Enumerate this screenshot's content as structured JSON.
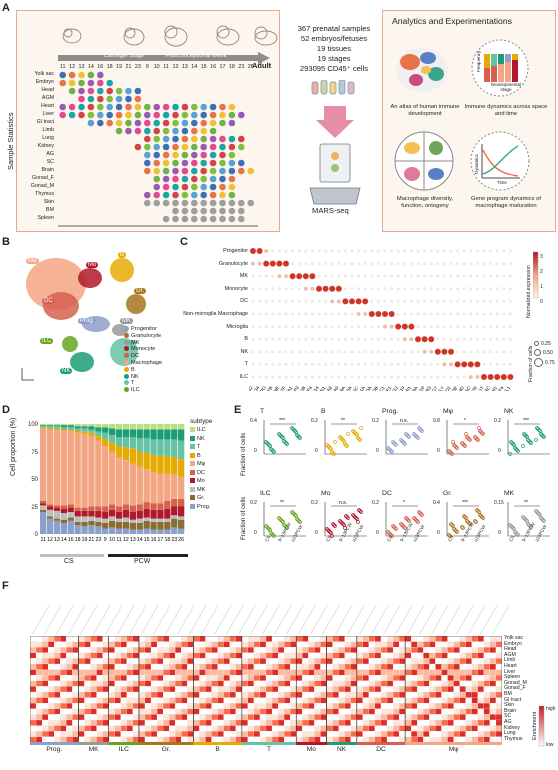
{
  "panelA": {
    "letter": "A",
    "y_title": "Sample Statistics",
    "stage_carnegie": "Carnegie Stage",
    "stage_post": "Postconceptional Week",
    "adult": "Adult",
    "stages": [
      "11",
      "12",
      "13",
      "14",
      "16",
      "18",
      "19",
      "21",
      "23",
      "9",
      "10",
      "11",
      "12",
      "13",
      "14",
      "15",
      "16",
      "17",
      "18",
      "23",
      "26"
    ],
    "tissues": [
      "Yolk sac",
      "Embryo",
      "Head",
      "AGM",
      "Heart",
      "Liver",
      "GI tract",
      "Limb",
      "Lung",
      "Kidney",
      "AG",
      "SC",
      "Brain",
      "Gonad_F",
      "Gonad_M",
      "Thymus",
      "Skin",
      "BM",
      "Spleen"
    ],
    "stats": [
      "367 prenatal samples",
      "52 embryos/fetuses",
      "19 tissues",
      "19 stages",
      "293095 CD45⁺ cells"
    ],
    "method": "MARS-seq",
    "analytics_title": "Analytics and Experimentations",
    "analytics": [
      {
        "caption": "An atlas of human immune development"
      },
      {
        "caption": "Immune dynamics across space and time",
        "ylab": "Frequency",
        "xlab": "Developmental stage"
      },
      {
        "caption": "Macrophage diversity, function, ontogeny"
      },
      {
        "caption": "Gene program dynamics of macrophage maturation",
        "ylab": "Dynamics",
        "xlab": "Time"
      }
    ]
  },
  "panelB": {
    "letter": "B",
    "cluster_labels": [
      "Mφ",
      "Mo",
      "B",
      "Gr.",
      "DC",
      "MK",
      "Prog.",
      "ILC",
      "NK",
      "T"
    ],
    "legend": [
      {
        "name": "Progenitor",
        "color": "#8da0cb"
      },
      {
        "name": "Granulocyte",
        "color": "#a6761d"
      },
      {
        "name": "MK",
        "color": "#999999"
      },
      {
        "name": "Monocyte",
        "color": "#b2182b"
      },
      {
        "name": "DC",
        "color": "#d6604d"
      },
      {
        "name": "Macrophage",
        "color": "#f4a582"
      },
      {
        "name": "B",
        "color": "#e6ab02"
      },
      {
        "name": "NK",
        "color": "#1b9e77"
      },
      {
        "name": "T",
        "color": "#66c2a5"
      },
      {
        "name": "ILC",
        "color": "#66a61e"
      }
    ]
  },
  "panelC": {
    "letter": "C",
    "rows": [
      "Progenitor",
      "Granulocyte",
      "MK",
      "Monocyte",
      "DC",
      "Non-microglia Macrophage",
      "Microglia",
      "B",
      "NK",
      "T",
      "ILC"
    ],
    "colorbar_title": "Normalized expression",
    "colorbar_ticks": [
      "3",
      "2",
      "1",
      "0"
    ],
    "size_title": "Fraction of cells",
    "size_ticks": [
      "0.25",
      "0.50",
      "0.75"
    ],
    "genes": [
      "HMGB2",
      "CD34",
      "MPO",
      "MYB",
      "ELANE",
      "LTF",
      "GATA1",
      "GP9",
      "ITGA2B",
      "PF4",
      "CD14",
      "FCN1",
      "S100A8",
      "S100A9",
      "CLEC9A",
      "CLEC10A",
      "CD1C",
      "FCER1A",
      "C1QA",
      "C1QB",
      "MRC1",
      "LYVE1",
      "P2RY12",
      "TMEM119",
      "CX3CR1",
      "CD79A",
      "CD19",
      "VPREB3",
      "NKG7",
      "GNLY",
      "KLRD1",
      "CD3E",
      "CD3D",
      "TRAC",
      "IL7R",
      "KIT",
      "RORC",
      "IL4I1",
      "TNFRSF4",
      "XCL1"
    ]
  },
  "panelD": {
    "letter": "D",
    "ylabel": "Cell proportion (%)",
    "yticks": [
      "100",
      "75",
      "50",
      "25",
      "0"
    ],
    "legend_title": "subtype",
    "legend": [
      {
        "name": "ILC",
        "color": "#b8e186"
      },
      {
        "name": "NK",
        "color": "#1b9e77"
      },
      {
        "name": "T",
        "color": "#66c2a5"
      },
      {
        "name": "B",
        "color": "#e6ab02"
      },
      {
        "name": "Mφ",
        "color": "#f4a582"
      },
      {
        "name": "DC",
        "color": "#d6604d"
      },
      {
        "name": "Mo",
        "color": "#b2182b"
      },
      {
        "name": "MK",
        "color": "#bdbdbd"
      },
      {
        "name": "Gr.",
        "color": "#8c6d31"
      },
      {
        "name": "Prog.",
        "color": "#8da0cb"
      }
    ],
    "cs_label": "CS",
    "pcw_label": "PCW"
  },
  "chart_data": [
    {
      "type": "bar",
      "title": "",
      "ylabel": "Cell proportion (%)",
      "ylim": [
        0,
        100
      ],
      "categories": [
        "11",
        "12",
        "13",
        "14",
        "16",
        "18",
        "19",
        "21",
        "23",
        "9",
        "10",
        "11",
        "12",
        "13",
        "14",
        "15",
        "16",
        "17",
        "18",
        "23",
        "26"
      ],
      "series": [
        {
          "name": "Prog.",
          "values": [
            20,
            14,
            12,
            10,
            12,
            8,
            7,
            8,
            7,
            5,
            6,
            5,
            5,
            4,
            4,
            5,
            4,
            4,
            4,
            6,
            5
          ]
        },
        {
          "name": "Gr.",
          "values": [
            2,
            2,
            2,
            3,
            3,
            3,
            4,
            4,
            4,
            5,
            6,
            6,
            6,
            6,
            6,
            7,
            7,
            7,
            7,
            8,
            8
          ]
        },
        {
          "name": "MK",
          "values": [
            4,
            6,
            7,
            6,
            5,
            5,
            5,
            4,
            4,
            4,
            4,
            3,
            4,
            3,
            4,
            3,
            3,
            3,
            3,
            3,
            3
          ]
        },
        {
          "name": "Mo",
          "values": [
            2,
            3,
            3,
            4,
            4,
            5,
            5,
            5,
            6,
            6,
            6,
            6,
            7,
            7,
            7,
            8,
            8,
            8,
            9,
            8,
            9
          ]
        },
        {
          "name": "DC",
          "values": [
            2,
            2,
            2,
            3,
            3,
            3,
            3,
            4,
            4,
            5,
            5,
            5,
            5,
            6,
            6,
            6,
            6,
            6,
            7,
            7,
            7
          ]
        },
        {
          "name": "Mφ",
          "values": [
            66,
            68,
            69,
            68,
            67,
            68,
            67,
            64,
            60,
            55,
            48,
            45,
            40,
            38,
            34,
            30,
            28,
            27,
            25,
            22,
            20
          ]
        },
        {
          "name": "B",
          "values": [
            1,
            1,
            1,
            1,
            1,
            2,
            2,
            3,
            4,
            6,
            8,
            10,
            12,
            14,
            14,
            15,
            16,
            16,
            16,
            16,
            16
          ]
        },
        {
          "name": "T",
          "values": [
            1,
            2,
            2,
            2,
            2,
            2,
            3,
            3,
            4,
            6,
            7,
            8,
            9,
            10,
            12,
            13,
            14,
            15,
            15,
            16,
            17
          ]
        },
        {
          "name": "NK",
          "values": [
            1,
            1,
            1,
            2,
            2,
            2,
            2,
            3,
            4,
            5,
            6,
            7,
            7,
            7,
            8,
            8,
            9,
            9,
            9,
            9,
            10
          ]
        },
        {
          "name": "ILC",
          "values": [
            1,
            1,
            1,
            1,
            1,
            2,
            2,
            2,
            3,
            3,
            4,
            5,
            5,
            5,
            5,
            5,
            5,
            5,
            5,
            5,
            5
          ]
        }
      ]
    }
  ],
  "panelE": {
    "letter": "E",
    "ylabel": "Fraction of cells",
    "groups": [
      "CS",
      "9~13PCW",
      "≥15PCW"
    ],
    "plots": [
      {
        "name": "T",
        "ymax": "0.4"
      },
      {
        "name": "B",
        "ymax": "0.2"
      },
      {
        "name": "Prog.",
        "ymax": "0.2"
      },
      {
        "name": "Mφ",
        "ymax": "0.8"
      },
      {
        "name": "NK",
        "ymax": "0.2"
      },
      {
        "name": "ILC",
        "ymax": "0.2"
      },
      {
        "name": "Mo",
        "ymax": "0.2"
      },
      {
        "name": "DC",
        "ymax": "0.2"
      },
      {
        "name": "Gr.",
        "ymax": "0.4"
      },
      {
        "name": "MK",
        "ymax": "0.15"
      }
    ],
    "sig": [
      "***",
      "**",
      "n.s.",
      "*"
    ]
  },
  "panelF": {
    "letter": "F",
    "rows": [
      "Yolk sac",
      "Embryo",
      "Head",
      "AGM",
      "Limb",
      "Heart",
      "Liver",
      "Spleen",
      "Gonad_M",
      "Gonad_F",
      "BM",
      "GI tract",
      "Skin",
      "Brain",
      "SC",
      "AG",
      "Kidney",
      "Lung",
      "Thymus"
    ],
    "groups": [
      {
        "name": "Prog.",
        "color": "#8da0cb"
      },
      {
        "name": "MK",
        "color": "#999999"
      },
      {
        "name": "ILC",
        "color": "#66a61e"
      },
      {
        "name": "Gr.",
        "color": "#a6761d"
      },
      {
        "name": "B",
        "color": "#e6ab02"
      },
      {
        "name": "T",
        "color": "#66c2a5"
      },
      {
        "name": "Mo",
        "color": "#b2182b"
      },
      {
        "name": "NK",
        "color": "#1b9e77"
      },
      {
        "name": "DC",
        "color": "#d6604d"
      },
      {
        "name": "Mφ",
        "color": "#f4a582"
      }
    ],
    "legend_title": "Enrichment",
    "legend_high": "high",
    "legend_low": "low"
  }
}
